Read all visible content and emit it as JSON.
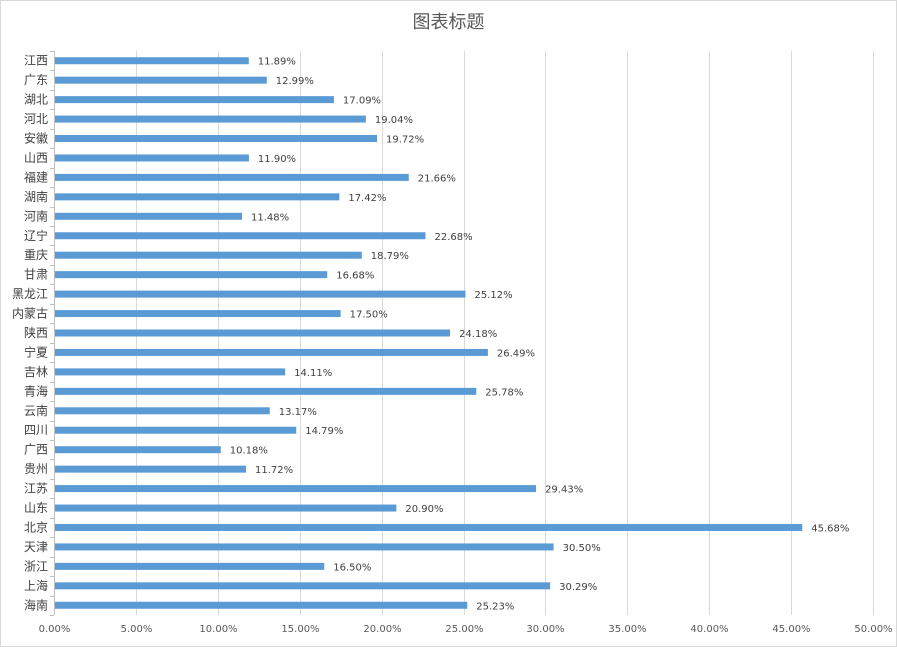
{
  "chart_data": {
    "type": "bar",
    "orientation": "horizontal",
    "title": "图表标题",
    "xlabel": "",
    "ylabel": "",
    "xlim": [
      0,
      50
    ],
    "x_ticks": [
      "0.00%",
      "5.00%",
      "10.00%",
      "15.00%",
      "20.00%",
      "25.00%",
      "30.00%",
      "35.00%",
      "40.00%",
      "45.00%",
      "50.00%"
    ],
    "grid": "vertical",
    "bar_color": "#5b9bd5",
    "categories": [
      "江西",
      "广东",
      "湖北",
      "河北",
      "安徽",
      "山西",
      "福建",
      "湖南",
      "河南",
      "辽宁",
      "重庆",
      "甘肃",
      "黑龙江",
      "内蒙古",
      "陕西",
      "宁夏",
      "吉林",
      "青海",
      "云南",
      "四川",
      "广西",
      "贵州",
      "江苏",
      "山东",
      "北京",
      "天津",
      "浙江",
      "上海",
      "海南"
    ],
    "values": [
      11.89,
      12.99,
      17.09,
      19.04,
      19.72,
      11.9,
      21.66,
      17.42,
      11.48,
      22.68,
      18.79,
      16.68,
      25.12,
      17.5,
      24.18,
      26.49,
      14.11,
      25.78,
      13.17,
      14.79,
      10.18,
      11.72,
      29.43,
      20.9,
      45.68,
      30.5,
      16.5,
      30.29,
      25.23
    ],
    "value_labels": [
      "11.89%",
      "12.99%",
      "17.09%",
      "19.04%",
      "19.72%",
      "11.90%",
      "21.66%",
      "17.42%",
      "11.48%",
      "22.68%",
      "18.79%",
      "16.68%",
      "25.12%",
      "17.50%",
      "24.18%",
      "26.49%",
      "14.11%",
      "25.78%",
      "13.17%",
      "14.79%",
      "10.18%",
      "11.72%",
      "29.43%",
      "20.90%",
      "45.68%",
      "30.50%",
      "16.50%",
      "30.29%",
      "25.23%"
    ]
  }
}
